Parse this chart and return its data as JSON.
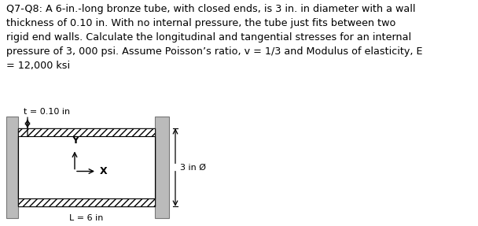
{
  "title_text": "Q7-Q8: A 6-in.-long bronze tube, with closed ends, is 3 in. in diameter with a wall\nthickness of 0.10 in. With no internal pressure, the tube just fits between two\nrigid end walls. Calculate the longitudinal and tangential stresses for an internal\npressure of 3, 000 psi. Assume Poisson’s ratio, v = 1/3 and Modulus of elasticity, E\n= 12,000 ksi",
  "label_t": "t = 0.10 in",
  "label_Y": "Y",
  "label_X": "X",
  "label_L": "L = 6 in",
  "label_diam": "3 in Ø",
  "bg_color": "#ffffff",
  "text_color": "#000000",
  "wall_color": "#bbbbbb",
  "font_size_title": 9.2,
  "font_size_label": 8.0
}
